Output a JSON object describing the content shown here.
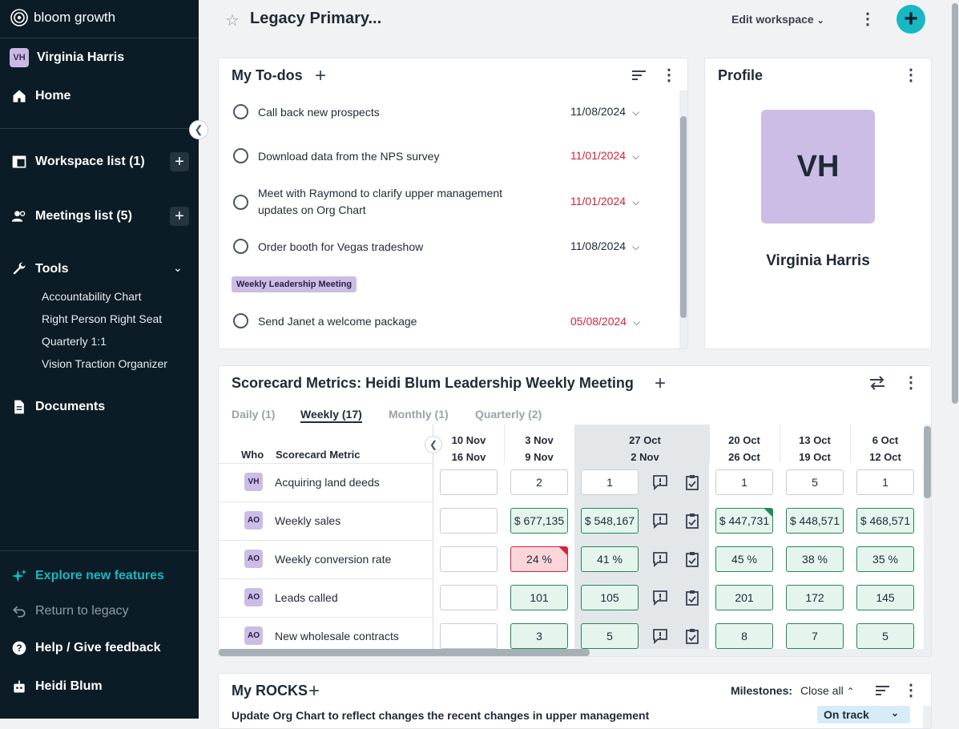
{
  "sidebar": {
    "brand": "bloom growth",
    "user_initials": "VH",
    "user_name": "Virginia Harris",
    "home": "Home",
    "workspace_list": "Workspace list (1)",
    "meetings_list": "Meetings list (5)",
    "tools": "Tools",
    "tools_items": [
      "Accountability Chart",
      "Right Person Right Seat",
      "Quarterly 1:1",
      "Vision Traction Organizer"
    ],
    "documents": "Documents",
    "explore": "Explore new features",
    "return_legacy": "Return to legacy",
    "help": "Help / Give feedback",
    "bottom_user": "Heidi Blum"
  },
  "header": {
    "title": "Legacy Primary...",
    "edit_workspace": "Edit workspace"
  },
  "todos": {
    "title": "My To-dos",
    "items": [
      {
        "text": "Call back new prospects",
        "date": "11/08/2024"
      },
      {
        "text": "Download data from the NPS survey",
        "date": "11/01/2024"
      },
      {
        "text": "Meet with Raymond to clarify upper management",
        "text2": "updates on Org Chart",
        "date": "11/01/2024"
      },
      {
        "text": "Order booth for Vegas tradeshow",
        "date": "11/08/2024"
      },
      {
        "text": "Send Janet a welcome package",
        "date": "05/08/2024"
      }
    ],
    "group_tag": "Weekly Leadership Meeting"
  },
  "profile": {
    "title": "Profile",
    "initials": "VH",
    "name": "Virginia Harris"
  },
  "scorecard": {
    "title": "Scorecard Metrics: Heidi Blum Leadership Weekly Meeting",
    "tabs": [
      "Daily (1)",
      "Weekly (17)",
      "Monthly (1)",
      "Quarterly (2)"
    ],
    "col_who": "Who",
    "col_metric": "Scorecard Metric",
    "weeks": [
      {
        "a": "10 Nov",
        "b": "16 Nov"
      },
      {
        "a": "3 Nov",
        "b": "9 Nov"
      },
      {
        "a": "27 Oct",
        "b": "2 Nov"
      },
      {
        "a": "20 Oct",
        "b": "26 Oct"
      },
      {
        "a": "13 Oct",
        "b": "19 Oct"
      },
      {
        "a": "6 Oct",
        "b": "12 Oct"
      }
    ],
    "rows": [
      {
        "who": "VH",
        "metric": "Acquiring land deeds",
        "v": [
          "",
          "2",
          "1",
          "1",
          "5",
          "1"
        ]
      },
      {
        "who": "AO",
        "metric": "Weekly sales",
        "v": [
          "",
          "$ 677,135",
          "$ 548,167",
          "$ 447,731",
          "$ 448,571",
          "$ 468,571"
        ]
      },
      {
        "who": "AO",
        "metric": "Weekly conversion rate",
        "v": [
          "",
          "24 %",
          "41 %",
          "45 %",
          "38 %",
          "35 %"
        ]
      },
      {
        "who": "AO",
        "metric": "Leads called",
        "v": [
          "",
          "101",
          "105",
          "201",
          "172",
          "145"
        ]
      },
      {
        "who": "AO",
        "metric": "New wholesale contracts",
        "v": [
          "",
          "3",
          "5",
          "8",
          "7",
          "5"
        ]
      }
    ]
  },
  "rocks": {
    "title": "My ROCKS",
    "milestones_label": "Milestones:",
    "close_all": "Close all",
    "first_rock": "Update Org Chart to reflect changes the recent changes in upper management",
    "status": "On track"
  },
  "colors": {
    "sidebar": "#0c1c26",
    "accent": "#17b8c4",
    "overdue": "#d1243a",
    "good": "#1f8a5a"
  }
}
